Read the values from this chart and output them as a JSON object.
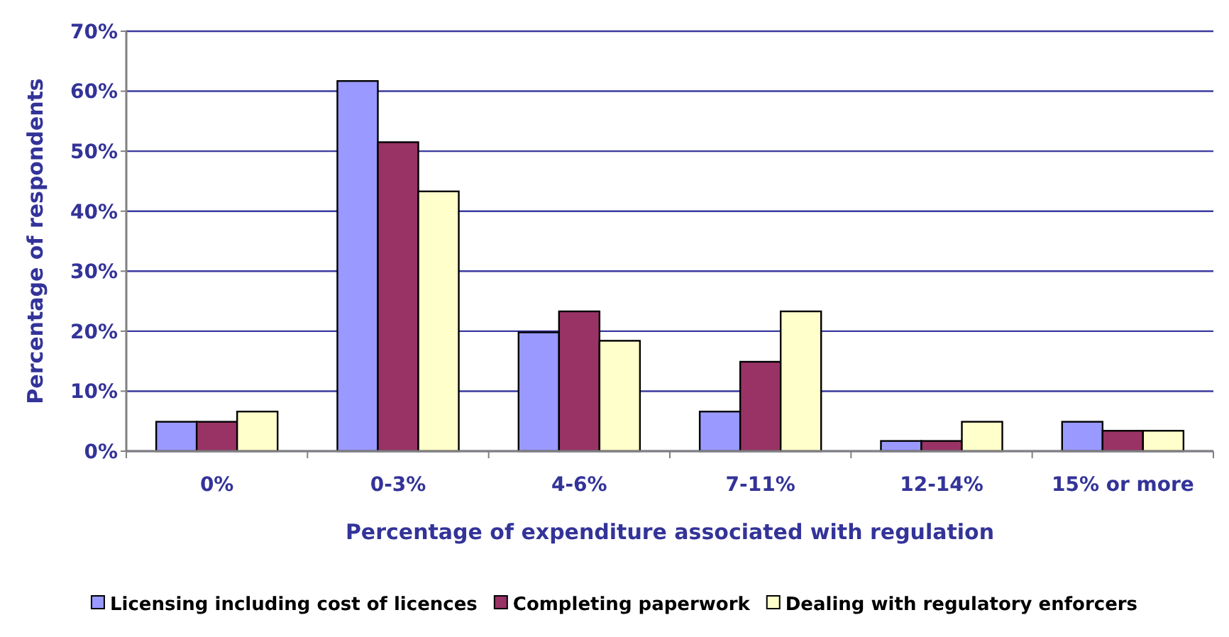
{
  "chart_data": {
    "type": "bar",
    "xlabel": "Percentage of expenditure associated with regulation",
    "ylabel": "Percentage of respondents",
    "categories": [
      "0%",
      "0-3%",
      "4-6%",
      "7-11%",
      "12-14%",
      "15% or more"
    ],
    "series": [
      {
        "name": "Licensing including cost of licences",
        "color": "#9999ff",
        "values": [
          4.9,
          61.7,
          19.8,
          6.6,
          1.7,
          4.9
        ]
      },
      {
        "name": "Completing paperwork",
        "color": "#993366",
        "values": [
          4.9,
          51.5,
          23.3,
          14.9,
          1.7,
          3.4
        ]
      },
      {
        "name": "Dealing with regulatory enforcers",
        "color": "#ffffcc",
        "values": [
          6.6,
          43.3,
          18.4,
          23.3,
          4.9,
          3.4
        ]
      }
    ],
    "ylim": [
      0,
      70
    ],
    "yticks": [
      {
        "value": 0,
        "label": "0%"
      },
      {
        "value": 10,
        "label": "10%"
      },
      {
        "value": 20,
        "label": "20%"
      },
      {
        "value": 30,
        "label": "30%"
      },
      {
        "value": 40,
        "label": "40%"
      },
      {
        "value": 50,
        "label": "50%"
      },
      {
        "value": 60,
        "label": "60%"
      },
      {
        "value": 70,
        "label": "70%"
      }
    ],
    "grid": "y",
    "legend": "bottom"
  }
}
